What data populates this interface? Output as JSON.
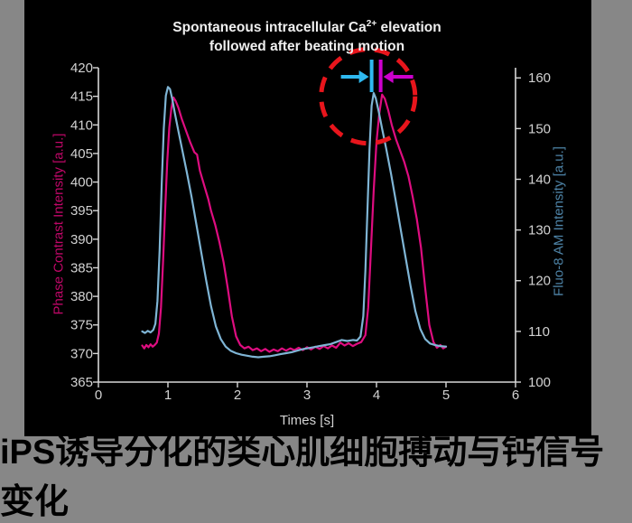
{
  "page": {
    "background_color": "#878787",
    "caption": "iPS诱导分化的类心肌细胞搏动与钙信号变化"
  },
  "figure": {
    "background_color": "#000000"
  },
  "chart_data": {
    "type": "line",
    "title": {
      "line1_pre": "Spontaneous intracellular Ca",
      "line1_sup": "2+",
      "line1_post": " elevation",
      "line2": "followed after beating motion"
    },
    "xlabel": "Times [s]",
    "x_ticks": [
      0,
      1,
      2,
      3,
      4,
      5,
      6
    ],
    "xlim": [
      0,
      6
    ],
    "grid": false,
    "legend": "none",
    "text_color": "#D2D2D2",
    "axis_line_color": "#D8D8D8",
    "left_axis": {
      "label": "Phase Contrast Intensity [a.u.]",
      "label_color": "#C00768",
      "ticks": [
        365,
        370,
        375,
        380,
        385,
        390,
        395,
        400,
        405,
        410,
        415,
        420
      ],
      "range": [
        365,
        420
      ]
    },
    "right_axis": {
      "label": "Fluo-8 AM Intensity [a.u.]",
      "label_color": "#4E84A8",
      "ticks": [
        100,
        110,
        120,
        130,
        140,
        150,
        160
      ],
      "range": [
        100,
        162
      ]
    },
    "series": [
      {
        "name": "Phase Contrast Intensity",
        "axis": "left",
        "color": "#DE0D80",
        "points": [
          [
            0.63,
            371.4
          ],
          [
            0.66,
            370.9
          ],
          [
            0.69,
            371.5
          ],
          [
            0.72,
            371.1
          ],
          [
            0.75,
            371.6
          ],
          [
            0.78,
            371.2
          ],
          [
            0.81,
            371.5
          ],
          [
            0.84,
            371.9
          ],
          [
            0.87,
            373.5
          ],
          [
            0.9,
            378.0
          ],
          [
            0.93,
            386.0
          ],
          [
            0.96,
            395.0
          ],
          [
            0.99,
            403.5
          ],
          [
            1.02,
            409.5
          ],
          [
            1.05,
            413.0
          ],
          [
            1.08,
            414.8
          ],
          [
            1.11,
            414.2
          ],
          [
            1.15,
            413.0
          ],
          [
            1.2,
            411.0
          ],
          [
            1.26,
            409.0
          ],
          [
            1.32,
            407.0
          ],
          [
            1.38,
            405.2
          ],
          [
            1.42,
            404.8
          ],
          [
            1.46,
            402.0
          ],
          [
            1.52,
            399.5
          ],
          [
            1.58,
            397.0
          ],
          [
            1.62,
            395.0
          ],
          [
            1.68,
            392.5
          ],
          [
            1.74,
            389.5
          ],
          [
            1.8,
            386.0
          ],
          [
            1.86,
            381.5
          ],
          [
            1.92,
            376.5
          ],
          [
            1.98,
            373.0
          ],
          [
            2.04,
            371.5
          ],
          [
            2.1,
            370.9
          ],
          [
            2.16,
            371.2
          ],
          [
            2.22,
            370.6
          ],
          [
            2.28,
            370.9
          ],
          [
            2.34,
            370.4
          ],
          [
            2.4,
            370.8
          ],
          [
            2.46,
            370.3
          ],
          [
            2.52,
            370.7
          ],
          [
            2.58,
            370.4
          ],
          [
            2.64,
            370.9
          ],
          [
            2.7,
            370.5
          ],
          [
            2.76,
            370.9
          ],
          [
            2.82,
            370.6
          ],
          [
            2.88,
            371.0
          ],
          [
            2.94,
            370.6
          ],
          [
            3.0,
            371.1
          ],
          [
            3.06,
            370.7
          ],
          [
            3.12,
            371.2
          ],
          [
            3.18,
            370.8
          ],
          [
            3.24,
            371.3
          ],
          [
            3.3,
            370.9
          ],
          [
            3.36,
            371.4
          ],
          [
            3.42,
            371.0
          ],
          [
            3.48,
            371.9
          ],
          [
            3.54,
            371.4
          ],
          [
            3.6,
            371.8
          ],
          [
            3.66,
            371.3
          ],
          [
            3.72,
            371.7
          ],
          [
            3.78,
            372.0
          ],
          [
            3.84,
            373.2
          ],
          [
            3.88,
            378.0
          ],
          [
            3.92,
            388.0
          ],
          [
            3.96,
            398.5
          ],
          [
            4.0,
            407.0
          ],
          [
            4.04,
            412.0
          ],
          [
            4.08,
            415.3
          ],
          [
            4.12,
            414.6
          ],
          [
            4.17,
            412.5
          ],
          [
            4.22,
            410.0
          ],
          [
            4.28,
            407.5
          ],
          [
            4.34,
            405.5
          ],
          [
            4.4,
            403.5
          ],
          [
            4.46,
            401.0
          ],
          [
            4.52,
            397.5
          ],
          [
            4.58,
            393.5
          ],
          [
            4.64,
            388.5
          ],
          [
            4.7,
            381.5
          ],
          [
            4.76,
            375.0
          ],
          [
            4.82,
            372.0
          ],
          [
            4.87,
            371.0
          ],
          [
            4.92,
            371.5
          ],
          [
            4.96,
            370.9
          ],
          [
            5.0,
            371.2
          ]
        ]
      },
      {
        "name": "Fluo-8 AM Intensity",
        "axis": "right",
        "color": "#7FB5D5",
        "points": [
          [
            0.63,
            110.0
          ],
          [
            0.67,
            109.7
          ],
          [
            0.71,
            110.1
          ],
          [
            0.75,
            109.8
          ],
          [
            0.79,
            110.3
          ],
          [
            0.82,
            111.5
          ],
          [
            0.85,
            116.0
          ],
          [
            0.88,
            126.0
          ],
          [
            0.91,
            139.0
          ],
          [
            0.94,
            150.0
          ],
          [
            0.97,
            156.5
          ],
          [
            1.0,
            158.2
          ],
          [
            1.03,
            157.8
          ],
          [
            1.06,
            156.0
          ],
          [
            1.1,
            153.0
          ],
          [
            1.15,
            149.5
          ],
          [
            1.21,
            145.5
          ],
          [
            1.27,
            141.5
          ],
          [
            1.34,
            136.5
          ],
          [
            1.41,
            131.0
          ],
          [
            1.48,
            125.5
          ],
          [
            1.55,
            120.0
          ],
          [
            1.62,
            115.0
          ],
          [
            1.69,
            111.0
          ],
          [
            1.76,
            108.5
          ],
          [
            1.83,
            107.0
          ],
          [
            1.9,
            106.2
          ],
          [
            1.98,
            105.7
          ],
          [
            2.06,
            105.4
          ],
          [
            2.14,
            105.2
          ],
          [
            2.22,
            105.0
          ],
          [
            2.3,
            104.9
          ],
          [
            2.38,
            105.0
          ],
          [
            2.46,
            105.1
          ],
          [
            2.54,
            105.3
          ],
          [
            2.62,
            105.5
          ],
          [
            2.7,
            105.7
          ],
          [
            2.78,
            105.9
          ],
          [
            2.86,
            106.2
          ],
          [
            2.94,
            106.5
          ],
          [
            3.02,
            106.7
          ],
          [
            3.1,
            106.9
          ],
          [
            3.18,
            107.1
          ],
          [
            3.26,
            107.3
          ],
          [
            3.34,
            107.5
          ],
          [
            3.42,
            107.9
          ],
          [
            3.5,
            108.3
          ],
          [
            3.58,
            108.1
          ],
          [
            3.66,
            108.3
          ],
          [
            3.72,
            108.2
          ],
          [
            3.77,
            109.0
          ],
          [
            3.81,
            113.0
          ],
          [
            3.84,
            122.0
          ],
          [
            3.87,
            134.0
          ],
          [
            3.9,
            146.0
          ],
          [
            3.93,
            154.5
          ],
          [
            3.96,
            157.0
          ],
          [
            3.99,
            156.0
          ],
          [
            4.03,
            153.5
          ],
          [
            4.08,
            150.0
          ],
          [
            4.14,
            146.0
          ],
          [
            4.21,
            141.0
          ],
          [
            4.28,
            135.5
          ],
          [
            4.35,
            130.0
          ],
          [
            4.42,
            124.5
          ],
          [
            4.49,
            119.0
          ],
          [
            4.56,
            114.0
          ],
          [
            4.63,
            110.5
          ],
          [
            4.7,
            108.5
          ],
          [
            4.77,
            107.6
          ],
          [
            4.84,
            107.3
          ],
          [
            4.91,
            107.1
          ],
          [
            5.0,
            107.0
          ]
        ]
      }
    ],
    "annotations": {
      "highlight_circle": {
        "t_center": 3.88,
        "value_left": 415,
        "radius_px": 52,
        "color": "#E8151C",
        "style": "dashed"
      },
      "peak_markers": [
        {
          "series": "Fluo-8 AM Intensity",
          "t": 3.93,
          "color": "#2FB9F0",
          "arrow_direction": "right"
        },
        {
          "series": "Phase Contrast Intensity",
          "t": 4.06,
          "color": "#CC00CC",
          "arrow_direction": "left"
        }
      ]
    }
  }
}
